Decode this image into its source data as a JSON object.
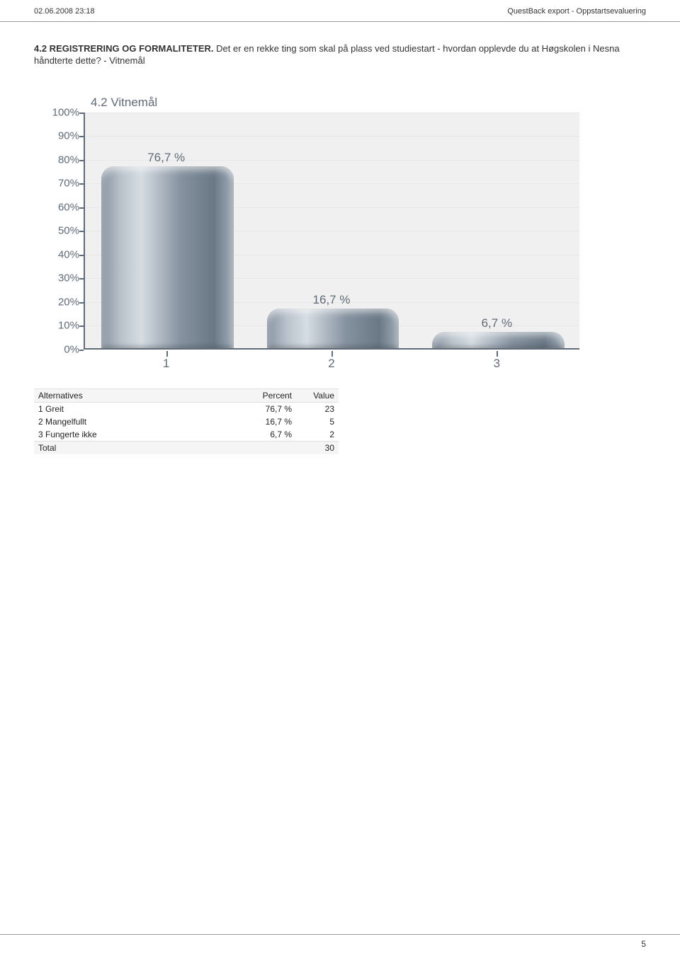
{
  "header": {
    "left": "02.06.2008 23:18",
    "right": "QuestBack export - Oppstartsevaluering"
  },
  "question": {
    "prefix": "4.2 REGISTRERING OG FORMALITETER. ",
    "body": "Det er en rekke ting som skal på plass ved studiestart - hvordan opplevde du at Høgskolen i Nesna håndterte dette? - Vitnemål"
  },
  "chart": {
    "type": "bar",
    "title": "4.2 Vitnemål",
    "categories": [
      "1",
      "2",
      "3"
    ],
    "values": [
      76.7,
      16.7,
      6.7
    ],
    "value_labels": [
      "76,7 %",
      "16,7 %",
      "6,7 %"
    ],
    "ylim": [
      0,
      100
    ],
    "ytick_step": 10,
    "yticks": [
      "0%",
      "10%",
      "20%",
      "30%",
      "40%",
      "50%",
      "60%",
      "70%",
      "80%",
      "90%",
      "100%"
    ],
    "background_color": "#f0f0f0",
    "grid_color": "#e6e6e6",
    "axis_color": "#5f6b78",
    "label_color": "#5f6b78",
    "title_fontsize": 17,
    "label_fontsize": 15,
    "bar_gradient": [
      "#8793a1",
      "#b9c2cb",
      "#d6dde3",
      "#8592a0",
      "#6a7886",
      "#a1adb9"
    ],
    "bar_width": 0.8
  },
  "table": {
    "columns": [
      "Alternatives",
      "Percent",
      "Value"
    ],
    "rows": [
      [
        "1 Greit",
        "76,7 %",
        "23"
      ],
      [
        "2 Mangelfullt",
        "16,7 %",
        "5"
      ],
      [
        "3 Fungerte ikke",
        "6,7 %",
        "2"
      ]
    ],
    "total": [
      "Total",
      "",
      "30"
    ]
  },
  "page_number": "5"
}
